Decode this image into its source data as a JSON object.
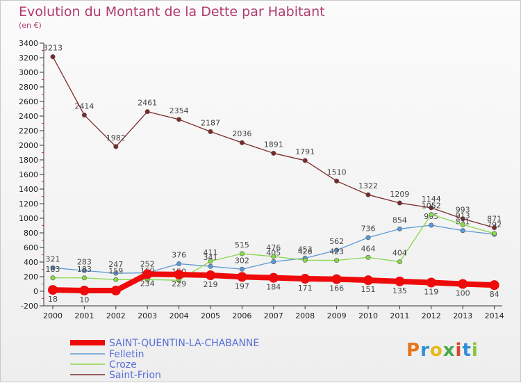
{
  "header": {
    "title": "Evolution du Montant de la Dette par Habitant",
    "subtitle": "(en €)"
  },
  "brand": {
    "logo_text": "Proxiti",
    "letters": [
      {
        "c": "P",
        "color": "#e8731a"
      },
      {
        "c": "r",
        "color": "#2f8fd8"
      },
      {
        "c": "o",
        "color": "#e8b81a"
      },
      {
        "c": "x",
        "color": "#4aa84a"
      },
      {
        "c": "i",
        "color": "#d8432f"
      },
      {
        "c": "t",
        "color": "#2f8fd8"
      },
      {
        "c": "i",
        "color": "#8ac43a"
      }
    ]
  },
  "chart_data": {
    "type": "line",
    "title": "Evolution du Montant de la Dette par Habitant",
    "subtitle": "(en €)",
    "xlabel": "",
    "ylabel": "",
    "x": [
      2000,
      2001,
      2002,
      2003,
      2004,
      2005,
      2006,
      2007,
      2008,
      2009,
      2010,
      2011,
      2012,
      2013,
      2014
    ],
    "ylim": [
      -200,
      3400
    ],
    "yticks": [
      -200,
      0,
      200,
      400,
      600,
      800,
      1000,
      1200,
      1400,
      1600,
      1800,
      2000,
      2200,
      2400,
      2600,
      2800,
      3000,
      3200,
      3400
    ],
    "grid": false,
    "legend_position": "bottom-left",
    "series": [
      {
        "name": "SAINT-QUENTIN-LA-CHABANNE",
        "color": "#ee0a0a",
        "values": [
          18,
          10,
          9,
          234,
          229,
          219,
          197,
          184,
          171,
          166,
          151,
          135,
          119,
          100,
          84
        ],
        "labels": [
          "18",
          "10",
          "",
          "234",
          "229",
          "219",
          "197",
          "184",
          "171",
          "166",
          "151",
          "135",
          "119",
          "100",
          "84"
        ]
      },
      {
        "name": "Felletin",
        "color": "#5c9ad6",
        "values": [
          321,
          283,
          247,
          252,
          376,
          341,
          302,
          405,
          453,
          562,
          736,
          854,
          905,
          831,
          779
        ],
        "labels": [
          "321",
          "283",
          "247",
          "252",
          "376",
          "341",
          "302",
          "405",
          "453",
          "562",
          "736",
          "854",
          "905",
          "831",
          ""
        ]
      },
      {
        "name": "Croze",
        "color": "#88d84a",
        "values": [
          183,
          183,
          159,
          160,
          150,
          411,
          515,
          476,
          426,
          423,
          464,
          404,
          1052,
          913,
          792
        ],
        "labels": [
          "183",
          "183",
          "159",
          "160",
          "150",
          "411",
          "515",
          "476",
          "426",
          "423",
          "464",
          "404",
          "1052",
          "913",
          "792"
        ]
      },
      {
        "name": "Saint-Frion",
        "color": "#7b2a2a",
        "values": [
          3213,
          2414,
          1982,
          2461,
          2354,
          2187,
          2036,
          1891,
          1791,
          1510,
          1322,
          1209,
          1144,
          993,
          871
        ],
        "labels": [
          "3213",
          "2414",
          "1982",
          "2461",
          "2354",
          "2187",
          "2036",
          "1891",
          "1791",
          "1510",
          "1322",
          "1209",
          "1144",
          "993",
          "871"
        ]
      }
    ]
  }
}
